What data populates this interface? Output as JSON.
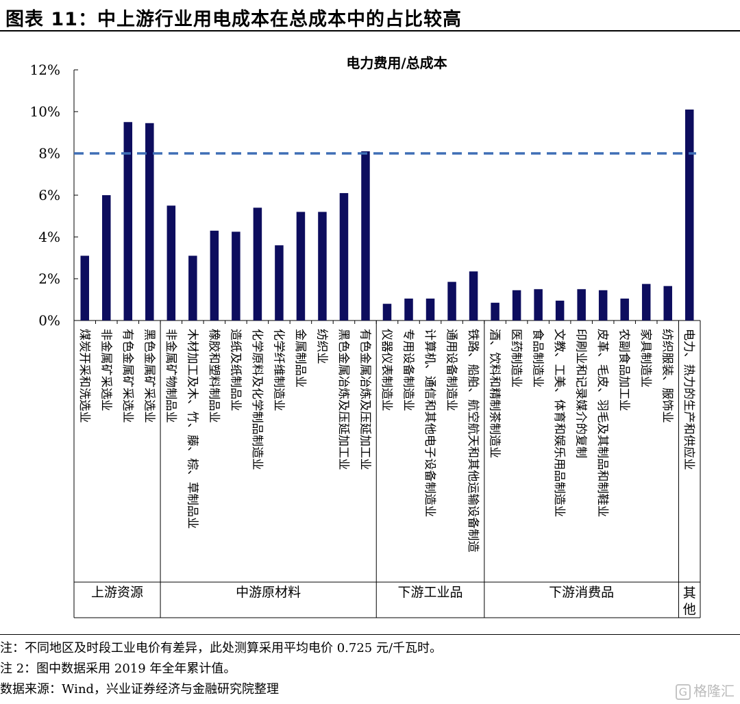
{
  "header": {
    "title": "图表 11：中上游行业用电成本在总成本中的占比较高"
  },
  "chart_data": {
    "type": "bar",
    "title": "电力费用/总成本",
    "ylim": [
      0,
      12
    ],
    "yticks": [
      "0%",
      "2%",
      "4%",
      "6%",
      "8%",
      "10%",
      "12%"
    ],
    "reference_line": 8,
    "bar_color": "#0d0d5e",
    "line_color": "#3f6eb5",
    "categories": [
      "煤炭开采和洗选业",
      "非金属矿采选业",
      "有色金属矿采选业",
      "黑色金属矿采选业",
      "非金属矿物制品业",
      "木材加工及木、竹、藤、棕、草制品业",
      "橡胶和塑料制品业",
      "造纸及纸制品业",
      "化学原料及化学制品制造业",
      "化学纤维制造业",
      "金属制品业",
      "纺织业",
      "黑色金属冶炼及压延加工业",
      "有色金属冶炼及压延加工业",
      "仪器仪表制造业",
      "专用设备制造业",
      "计算机、通信和其他电子设备制造业",
      "通用设备制造业",
      "铁路、船舶、航空航天和其他运输设备制造",
      "酒、饮料和精制茶制造业",
      "医药制造业",
      "食品制造业",
      "文教、工美、体育和娱乐用品制造业",
      "印刷业和记录媒介的复制",
      "皮革、毛皮、羽毛及其制品和制鞋业",
      "农副食品加工业",
      "家具制造业",
      "纺织服装、服饰业",
      "电力、热力的生产和供应业"
    ],
    "values": [
      3.1,
      6.0,
      9.5,
      9.45,
      5.5,
      3.1,
      4.3,
      4.25,
      5.4,
      3.6,
      5.2,
      5.2,
      6.1,
      8.1,
      0.8,
      1.05,
      1.05,
      1.85,
      2.35,
      0.85,
      1.45,
      1.5,
      0.95,
      1.5,
      1.45,
      1.05,
      1.75,
      1.65,
      10.1
    ],
    "groups": [
      {
        "name": "上游资源",
        "start": 0,
        "end": 3
      },
      {
        "name": "中游原材料",
        "start": 4,
        "end": 13
      },
      {
        "name": "下游工业品",
        "start": 14,
        "end": 18
      },
      {
        "name": "下游消费品",
        "start": 19,
        "end": 27
      },
      {
        "name": "其他",
        "start": 28,
        "end": 28
      }
    ]
  },
  "notes": {
    "note1": "注：不同地区及时段工业电价有差异，此处测算采用平均电价 0.725 元/千瓦时。",
    "note2": "注 2：图中数据采用 2019 年全年累计值。",
    "source": "数据来源：Wind，兴业证券经济与金融研究院整理"
  },
  "watermark": {
    "icon_text": "G",
    "text": "格隆汇"
  }
}
